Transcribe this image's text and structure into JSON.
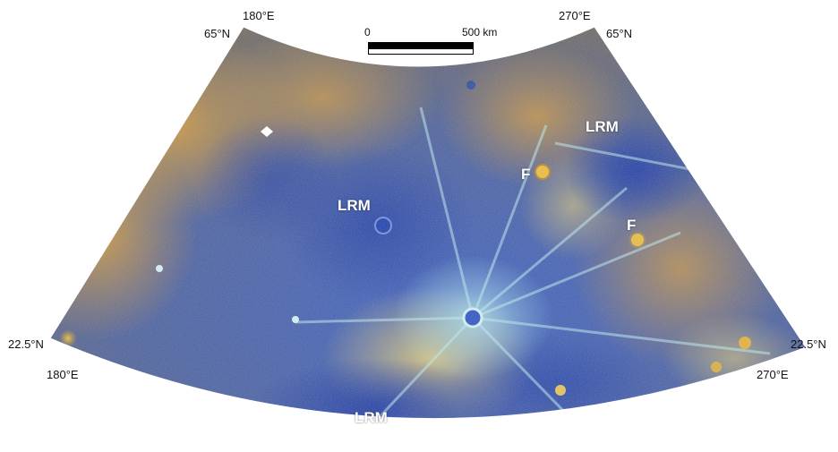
{
  "graticule": {
    "lat_top_left": "65°N",
    "lat_top_right": "65°N",
    "lon_top_left": "180°E",
    "lon_top_right": "270°E",
    "lat_bottom_left": "22.5°N",
    "lat_bottom_right": "22.5°N",
    "lon_bottom_left": "180°E",
    "lon_bottom_right": "270°E"
  },
  "scale_bar": {
    "start": "0",
    "end": "500 km"
  },
  "features": [
    {
      "label": "LRM"
    },
    {
      "label": "LRM"
    },
    {
      "label": "LRM"
    },
    {
      "label": "F"
    },
    {
      "label": "F"
    }
  ],
  "colors": {
    "blue_unit": "#2f55b8",
    "deep_blue": "#1f3a96",
    "orange_unit": "#c08a3a",
    "tan_unit": "#c9b66c",
    "ray_cyan": "#9ee6f0",
    "border": "#ffffff"
  }
}
